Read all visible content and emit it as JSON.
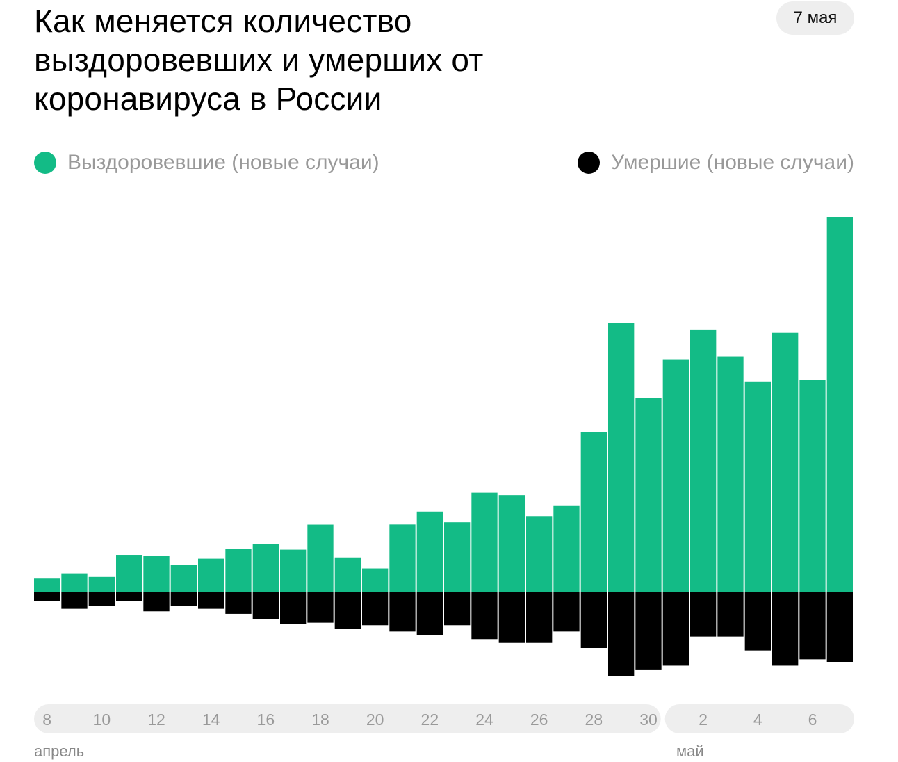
{
  "header": {
    "title": "Как меняется количество выздоровевших и умерших от коронавируса в России",
    "date_badge": "7 мая"
  },
  "legend": {
    "recovered_label": "Выздоровевшие (новые случаи)",
    "deaths_label": "Умершие (новые случаи)"
  },
  "colors": {
    "recovered": "#13bb86",
    "deaths": "#000000",
    "axis_pill": "#eeeeee",
    "tick_text": "#999999"
  },
  "months": {
    "april": "апрель",
    "may": "май"
  },
  "chart_data": {
    "type": "bar",
    "x": [
      "8",
      "9",
      "10",
      "11",
      "12",
      "13",
      "14",
      "15",
      "16",
      "17",
      "18",
      "19",
      "20",
      "21",
      "22",
      "23",
      "24",
      "25",
      "26",
      "27",
      "28",
      "29",
      "30",
      "1",
      "2",
      "3",
      "4",
      "5",
      "6",
      "7"
    ],
    "tick_labels": [
      "8",
      "10",
      "12",
      "14",
      "16",
      "18",
      "20",
      "22",
      "24",
      "26",
      "28",
      "30",
      "2",
      "4",
      "6"
    ],
    "series": [
      {
        "name": "Выздоровевшие (новые случаи)",
        "values": [
          101,
          142,
          114,
          285,
          277,
          207,
          255,
          331,
          366,
          325,
          519,
          265,
          180,
          520,
          620,
          537,
          766,
          747,
          585,
          663,
          1234,
          2081,
          1497,
          1794,
          2029,
          1821,
          1626,
          2003,
          1637,
          2900
        ]
      },
      {
        "name": "Умершие (новые случаи)",
        "values": [
          7,
          13,
          11,
          7,
          15,
          11,
          13,
          17,
          21,
          25,
          24,
          29,
          26,
          31,
          34,
          26,
          37,
          40,
          40,
          31,
          44,
          66,
          61,
          58,
          35,
          35,
          46,
          58,
          53,
          55
        ]
      }
    ],
    "ylim_recovered": [
      0,
      2900
    ],
    "ylim_deaths": [
      0,
      66
    ],
    "grid": false,
    "legend_position": "top"
  }
}
